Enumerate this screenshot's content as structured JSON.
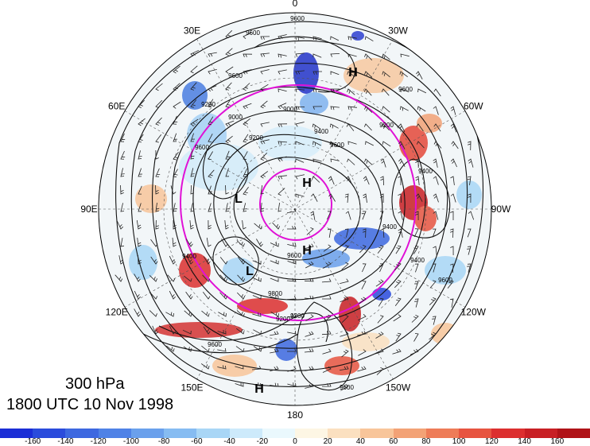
{
  "map": {
    "longitude_labels": [
      {
        "text": "0",
        "lon": 0
      },
      {
        "text": "30W",
        "lon": -30
      },
      {
        "text": "60W",
        "lon": -60
      },
      {
        "text": "90W",
        "lon": -90
      },
      {
        "text": "120W",
        "lon": -120
      },
      {
        "text": "150W",
        "lon": -150
      },
      {
        "text": "180",
        "lon": 180
      },
      {
        "text": "150E",
        "lon": 150
      },
      {
        "text": "120E",
        "lon": 120
      },
      {
        "text": "90E",
        "lon": 90
      },
      {
        "text": "60E",
        "lon": 60
      },
      {
        "text": "30E",
        "lon": 30
      }
    ],
    "pressure_centers": [
      {
        "text": "H",
        "kind": "high"
      },
      {
        "text": "H",
        "kind": "high"
      },
      {
        "text": "H",
        "kind": "high"
      },
      {
        "text": "H",
        "kind": "high"
      },
      {
        "text": "L",
        "kind": "low"
      },
      {
        "text": "L",
        "kind": "low"
      }
    ],
    "contour_labels": [
      "9600",
      "9600",
      "9200",
      "9000",
      "9600",
      "9200",
      "9400",
      "9600",
      "9200",
      "9400",
      "9600",
      "9200",
      "9400",
      "9600",
      "9600",
      "9000",
      "9400",
      "9600",
      "9800",
      "9200",
      "9600",
      "9400",
      "9600"
    ]
  },
  "title": {
    "level": "300 hPa",
    "valid_time": "1800 UTC 10 Nov 1998"
  },
  "colorbar": {
    "colors": [
      "#1b2ed6",
      "#2a4bdc",
      "#3d68e0",
      "#4f82e6",
      "#6aa0ec",
      "#86bcf2",
      "#a9d6f6",
      "#cdeafb",
      "#eaf8fd",
      "#fdf6e4",
      "#fbe0c0",
      "#f8c59a",
      "#f3a276",
      "#ee7c58",
      "#e75440",
      "#dc2f2f",
      "#c81f24",
      "#b01318"
    ],
    "tick_labels": [
      "-160",
      "-140",
      "-120",
      "-100",
      "-80",
      "-60",
      "-40",
      "-20",
      "0",
      "20",
      "40",
      "60",
      "80",
      "100",
      "120",
      "140",
      "160"
    ]
  }
}
